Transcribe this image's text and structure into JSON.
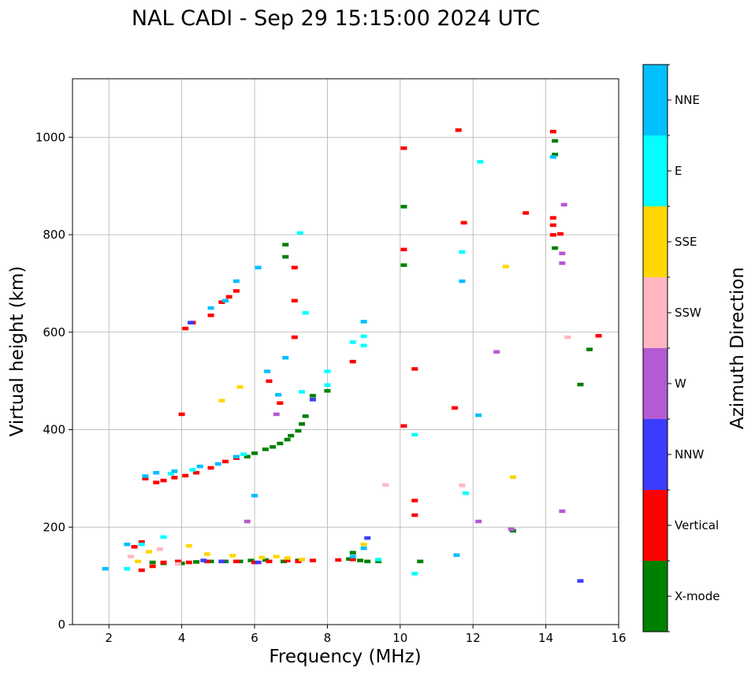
{
  "chart_data": {
    "type": "scatter",
    "title": "NAL CADI - Sep 29 15:15:00 2024 UTC",
    "xlabel": "Frequency (MHz)",
    "ylabel": "Virtual height (km)",
    "xlim": [
      1,
      16
    ],
    "ylim": [
      0,
      1120
    ],
    "xticks": [
      2,
      4,
      6,
      8,
      10,
      12,
      14,
      16
    ],
    "yticks": [
      0,
      200,
      400,
      600,
      800,
      1000
    ],
    "grid": true,
    "colorbar": {
      "label": "Azimuth Direction",
      "categories": [
        {
          "name": "X-mode",
          "color": "#008000"
        },
        {
          "name": "Vertical",
          "color": "#ff0000"
        },
        {
          "name": "NNW",
          "color": "#3c3cff"
        },
        {
          "name": "W",
          "color": "#b45ad2"
        },
        {
          "name": "SSW",
          "color": "#ffb6c1"
        },
        {
          "name": "SSE",
          "color": "#ffd700"
        },
        {
          "name": "E",
          "color": "#00ffff"
        },
        {
          "name": "NNE",
          "color": "#00bfff"
        }
      ]
    },
    "series": [
      {
        "name": "X-mode",
        "points": [
          [
            3.2,
            128
          ],
          [
            3.5,
            126
          ],
          [
            4.0,
            126
          ],
          [
            4.4,
            129
          ],
          [
            4.8,
            130
          ],
          [
            5.2,
            130
          ],
          [
            5.6,
            130
          ],
          [
            5.9,
            132
          ],
          [
            6.3,
            133
          ],
          [
            6.8,
            130
          ],
          [
            7.2,
            132
          ],
          [
            8.6,
            135
          ],
          [
            8.7,
            148
          ],
          [
            8.9,
            132
          ],
          [
            9.1,
            130
          ],
          [
            9.4,
            130
          ],
          [
            10.55,
            130
          ],
          [
            5.8,
            345
          ],
          [
            6.0,
            352
          ],
          [
            6.3,
            360
          ],
          [
            6.5,
            365
          ],
          [
            6.7,
            372
          ],
          [
            6.9,
            380
          ],
          [
            7.0,
            388
          ],
          [
            7.2,
            398
          ],
          [
            7.3,
            412
          ],
          [
            7.4,
            428
          ],
          [
            7.6,
            470
          ],
          [
            8.0,
            480
          ],
          [
            6.85,
            755
          ],
          [
            6.85,
            780
          ],
          [
            10.1,
            738
          ],
          [
            10.1,
            858
          ],
          [
            13.1,
            193
          ],
          [
            14.25,
            773
          ],
          [
            14.25,
            965
          ],
          [
            14.25,
            993
          ],
          [
            14.95,
            493
          ],
          [
            15.2,
            565
          ]
        ]
      },
      {
        "name": "Vertical",
        "points": [
          [
            2.9,
            112
          ],
          [
            3.2,
            120
          ],
          [
            3.5,
            128
          ],
          [
            3.9,
            130
          ],
          [
            4.2,
            128
          ],
          [
            4.7,
            130
          ],
          [
            5.1,
            130
          ],
          [
            5.5,
            130
          ],
          [
            6.0,
            128
          ],
          [
            6.4,
            130
          ],
          [
            6.9,
            132
          ],
          [
            7.2,
            130
          ],
          [
            7.6,
            132
          ],
          [
            8.3,
            133
          ],
          [
            8.7,
            134
          ],
          [
            2.7,
            160
          ],
          [
            2.9,
            170
          ],
          [
            3.0,
            300
          ],
          [
            3.3,
            292
          ],
          [
            3.5,
            296
          ],
          [
            3.8,
            302
          ],
          [
            4.1,
            306
          ],
          [
            4.4,
            312
          ],
          [
            4.8,
            322
          ],
          [
            5.2,
            335
          ],
          [
            5.5,
            342
          ],
          [
            4.1,
            608
          ],
          [
            4.3,
            620
          ],
          [
            4.8,
            635
          ],
          [
            5.1,
            662
          ],
          [
            5.3,
            673
          ],
          [
            5.5,
            685
          ],
          [
            6.4,
            500
          ],
          [
            6.7,
            455
          ],
          [
            7.1,
            590
          ],
          [
            7.1,
            665
          ],
          [
            7.1,
            733
          ],
          [
            8.7,
            540
          ],
          [
            4.0,
            432
          ],
          [
            10.1,
            408
          ],
          [
            10.4,
            525
          ],
          [
            10.4,
            255
          ],
          [
            10.4,
            225
          ],
          [
            10.1,
            770
          ],
          [
            10.1,
            978
          ],
          [
            11.5,
            445
          ],
          [
            11.6,
            1015
          ],
          [
            11.75,
            825
          ],
          [
            13.45,
            845
          ],
          [
            14.2,
            1012
          ],
          [
            14.2,
            800
          ],
          [
            14.2,
            820
          ],
          [
            14.2,
            835
          ],
          [
            14.4,
            802
          ],
          [
            15.45,
            593
          ]
        ]
      },
      {
        "name": "NNW",
        "points": [
          [
            4.6,
            132
          ],
          [
            5.1,
            130
          ],
          [
            6.1,
            128
          ],
          [
            7.6,
            462
          ],
          [
            9.1,
            178
          ],
          [
            14.95,
            90
          ],
          [
            4.25,
            620
          ]
        ]
      },
      {
        "name": "W",
        "points": [
          [
            6.6,
            432
          ],
          [
            5.8,
            212
          ],
          [
            12.15,
            212
          ],
          [
            12.65,
            560
          ],
          [
            13.05,
            196
          ],
          [
            14.45,
            233
          ],
          [
            14.45,
            742
          ],
          [
            14.45,
            762
          ],
          [
            14.5,
            862
          ]
        ]
      },
      {
        "name": "SSW",
        "points": [
          [
            2.6,
            140
          ],
          [
            3.4,
            155
          ],
          [
            3.9,
            125
          ],
          [
            11.7,
            286
          ],
          [
            9.6,
            287
          ],
          [
            14.6,
            590
          ]
        ]
      },
      {
        "name": "SSE",
        "points": [
          [
            2.8,
            130
          ],
          [
            3.1,
            150
          ],
          [
            4.2,
            162
          ],
          [
            4.7,
            145
          ],
          [
            5.4,
            142
          ],
          [
            6.2,
            138
          ],
          [
            6.6,
            140
          ],
          [
            6.9,
            137
          ],
          [
            7.3,
            134
          ],
          [
            9.0,
            165
          ],
          [
            12.9,
            735
          ],
          [
            13.1,
            303
          ],
          [
            5.1,
            460
          ],
          [
            5.6,
            488
          ]
        ]
      },
      {
        "name": "E",
        "points": [
          [
            2.5,
            115
          ],
          [
            2.9,
            165
          ],
          [
            3.5,
            180
          ],
          [
            3.7,
            310
          ],
          [
            4.3,
            318
          ],
          [
            5.7,
            350
          ],
          [
            7.25,
            804
          ],
          [
            7.3,
            478
          ],
          [
            7.4,
            640
          ],
          [
            8.0,
            520
          ],
          [
            8.0,
            492
          ],
          [
            8.7,
            580
          ],
          [
            9.0,
            592
          ],
          [
            9.0,
            573
          ],
          [
            9.4,
            134
          ],
          [
            10.4,
            105
          ],
          [
            10.4,
            390
          ],
          [
            11.7,
            765
          ],
          [
            12.2,
            950
          ],
          [
            11.8,
            270
          ]
        ]
      },
      {
        "name": "NNE",
        "points": [
          [
            1.9,
            115
          ],
          [
            2.5,
            165
          ],
          [
            3.0,
            305
          ],
          [
            3.3,
            312
          ],
          [
            3.8,
            315
          ],
          [
            4.5,
            325
          ],
          [
            5.0,
            330
          ],
          [
            5.5,
            345
          ],
          [
            4.8,
            650
          ],
          [
            5.2,
            665
          ],
          [
            5.5,
            705
          ],
          [
            6.1,
            733
          ],
          [
            6.0,
            265
          ],
          [
            6.35,
            520
          ],
          [
            6.65,
            472
          ],
          [
            6.85,
            548
          ],
          [
            8.7,
            140
          ],
          [
            9.0,
            157
          ],
          [
            9.0,
            622
          ],
          [
            11.55,
            143
          ],
          [
            12.15,
            430
          ],
          [
            11.7,
            705
          ],
          [
            14.2,
            960
          ]
        ]
      }
    ]
  }
}
